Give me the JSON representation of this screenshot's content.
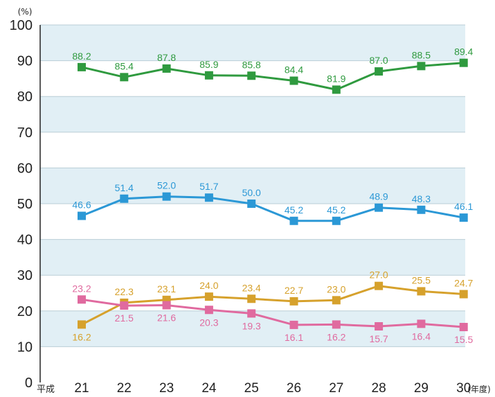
{
  "chart_data": {
    "type": "line",
    "title": "",
    "ylabel": "(%)",
    "xlabel_prefix": "平成",
    "xlabel_suffix": "(年度)",
    "ylim": [
      0,
      100
    ],
    "yticks": [
      "0",
      "10",
      "20",
      "30",
      "40",
      "50",
      "60",
      "70",
      "80",
      "90",
      "100"
    ],
    "categories": [
      "21",
      "22",
      "23",
      "24",
      "25",
      "26",
      "27",
      "28",
      "29",
      "30"
    ],
    "band_color": "#e1eff5",
    "grid": true,
    "legend": "none",
    "series": [
      {
        "color": "#2f9a3f",
        "values": [
          88.2,
          85.4,
          87.8,
          85.9,
          85.8,
          84.4,
          81.9,
          87.0,
          88.5,
          89.4
        ],
        "labels": [
          "88.2",
          "85.4",
          "87.8",
          "85.9",
          "85.8",
          "84.4",
          "81.9",
          "87.0",
          "88.5",
          "89.4"
        ]
      },
      {
        "color": "#2b98d6",
        "values": [
          46.6,
          51.4,
          52.0,
          51.7,
          50.0,
          45.2,
          45.2,
          48.9,
          48.3,
          46.1
        ],
        "labels": [
          "46.6",
          "51.4",
          "52.0",
          "51.7",
          "50.0",
          "45.2",
          "45.2",
          "48.9",
          "48.3",
          "46.1"
        ]
      },
      {
        "color": "#d6a12c",
        "values": [
          16.2,
          22.3,
          23.1,
          24.0,
          23.4,
          22.7,
          23.0,
          27.0,
          25.5,
          24.7
        ],
        "labels": [
          "16.2",
          "22.3",
          "23.1",
          "24.0",
          "23.4",
          "22.7",
          "23.0",
          "27.0",
          "25.5",
          "24.7"
        ]
      },
      {
        "color": "#e06a9f",
        "values": [
          23.2,
          21.5,
          21.6,
          20.3,
          19.3,
          16.1,
          16.2,
          15.7,
          16.4,
          15.5
        ],
        "labels": [
          "23.2",
          "21.5",
          "21.6",
          "20.3",
          "19.3",
          "16.1",
          "16.2",
          "15.7",
          "16.4",
          "15.5"
        ]
      }
    ]
  }
}
